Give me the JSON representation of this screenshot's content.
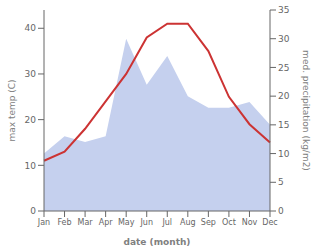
{
  "chart_data": {
    "type": "line",
    "xlabel": "date (month)",
    "ylabel": "max temp (C)",
    "y2label": "med. precipitation (kg/m2)",
    "categories": [
      "Jan",
      "Feb",
      "Mar",
      "Apr",
      "May",
      "Jun",
      "Jul",
      "Aug",
      "Sep",
      "Oct",
      "Nov",
      "Dec"
    ],
    "series": [
      {
        "type": "line",
        "color": "#cc3333",
        "values": [
          11,
          13,
          18,
          24,
          30,
          38,
          41,
          41,
          35,
          25,
          19,
          15
        ]
      },
      {
        "type": "area",
        "color": "#c5d0ee",
        "axis": "y2",
        "values": [
          10,
          13,
          12,
          13,
          30,
          22,
          27,
          20,
          18,
          18,
          19,
          15
        ]
      }
    ],
    "ylim": [
      0,
      44
    ],
    "yticks": [
      0,
      10,
      20,
      30,
      40
    ],
    "y2lim": [
      0,
      35
    ],
    "y2ticks": [
      0,
      5,
      10,
      15,
      20,
      25,
      30,
      35
    ]
  }
}
